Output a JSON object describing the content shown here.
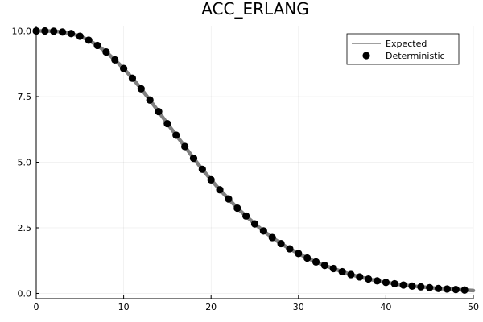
{
  "chart_data": {
    "type": "line",
    "title": "ACC_ERLANG",
    "xlabel": "",
    "ylabel": "",
    "xlim": [
      0,
      50
    ],
    "ylim": [
      -0.2,
      10.2
    ],
    "xticks": [
      0,
      10,
      20,
      30,
      40,
      50
    ],
    "xtick_labels": [
      "0",
      "10",
      "20",
      "30",
      "40",
      "50"
    ],
    "yticks": [
      0.0,
      2.5,
      5.0,
      7.5,
      10.0
    ],
    "ytick_labels": [
      "0.0",
      "2.5",
      "5.0",
      "7.5",
      "10.0"
    ],
    "grid": true,
    "legend_position": "top-right",
    "series": [
      {
        "name": "Expected",
        "kind": "line",
        "color": "#808080",
        "x": [
          0,
          1,
          2,
          3,
          4,
          5,
          6,
          7,
          8,
          9,
          10,
          11,
          12,
          13,
          14,
          15,
          16,
          17,
          18,
          19,
          20,
          21,
          22,
          23,
          24,
          25,
          26,
          27,
          28,
          29,
          30,
          31,
          32,
          33,
          34,
          35,
          36,
          37,
          38,
          39,
          40,
          41,
          42,
          43,
          44,
          45,
          46,
          47,
          48,
          49,
          50
        ],
        "y": [
          10.0,
          10.0,
          9.99,
          9.96,
          9.9,
          9.8,
          9.65,
          9.45,
          9.2,
          8.9,
          8.57,
          8.2,
          7.8,
          7.37,
          6.93,
          6.47,
          6.03,
          5.6,
          5.15,
          4.73,
          4.33,
          3.95,
          3.6,
          3.25,
          2.95,
          2.65,
          2.38,
          2.13,
          1.9,
          1.7,
          1.52,
          1.35,
          1.2,
          1.07,
          0.95,
          0.83,
          0.72,
          0.63,
          0.55,
          0.48,
          0.42,
          0.37,
          0.32,
          0.28,
          0.25,
          0.22,
          0.19,
          0.17,
          0.15,
          0.13,
          0.11
        ]
      },
      {
        "name": "Deterministic",
        "kind": "scatter",
        "color": "#000000",
        "x": [
          0,
          1,
          2,
          3,
          4,
          5,
          6,
          7,
          8,
          9,
          10,
          11,
          12,
          13,
          14,
          15,
          16,
          17,
          18,
          19,
          20,
          21,
          22,
          23,
          24,
          25,
          26,
          27,
          28,
          29,
          30,
          31,
          32,
          33,
          34,
          35,
          36,
          37,
          38,
          39,
          40,
          41,
          42,
          43,
          44,
          45,
          46,
          47,
          48,
          49
        ],
        "y": [
          10.0,
          10.0,
          9.99,
          9.96,
          9.9,
          9.8,
          9.65,
          9.45,
          9.2,
          8.9,
          8.57,
          8.2,
          7.8,
          7.37,
          6.93,
          6.47,
          6.03,
          5.6,
          5.15,
          4.73,
          4.33,
          3.95,
          3.6,
          3.25,
          2.95,
          2.65,
          2.38,
          2.13,
          1.9,
          1.7,
          1.52,
          1.35,
          1.2,
          1.07,
          0.95,
          0.83,
          0.72,
          0.63,
          0.55,
          0.48,
          0.42,
          0.37,
          0.32,
          0.28,
          0.25,
          0.22,
          0.19,
          0.17,
          0.15,
          0.13
        ]
      }
    ]
  }
}
